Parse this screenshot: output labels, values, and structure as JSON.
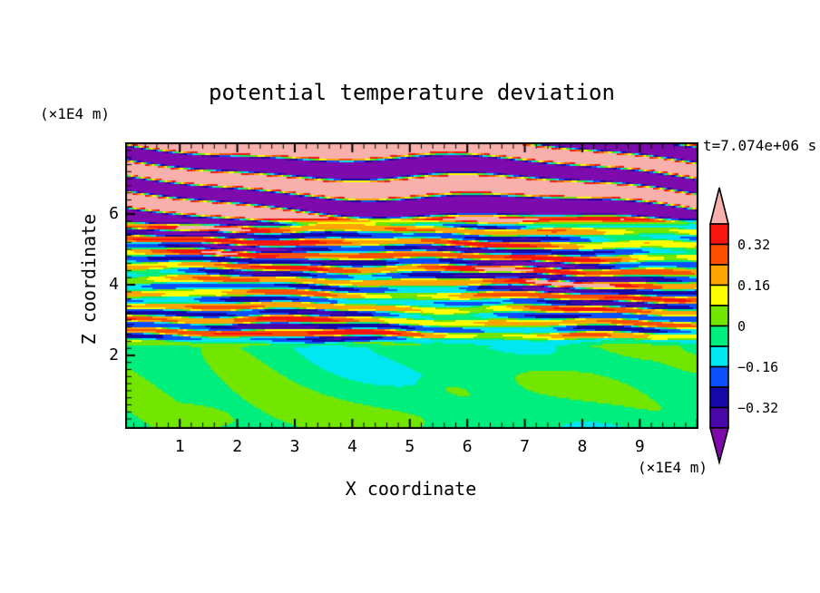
{
  "chart_data": {
    "type": "heatmap",
    "title": "potential temperature deviation",
    "timestamp_label": "t=7.074e+06 s",
    "x_axis": {
      "label": "X coordinate",
      "unit": "(×1E4 m)",
      "range": [
        0.05,
        10.02
      ],
      "major_ticks": [
        1,
        2,
        3,
        4,
        5,
        6,
        7,
        8,
        9,
        10
      ],
      "tick_labels": [
        "1",
        "2",
        "3",
        "4",
        "5",
        "6",
        "7",
        "8",
        "9",
        ""
      ],
      "minor_tick_interval": 0.2
    },
    "z_axis": {
      "label": "Z coordinate",
      "unit": "(×1E4 m)",
      "range": [
        -0.08,
        8.03
      ],
      "major_ticks": [
        2,
        4,
        6
      ],
      "tick_labels": [
        "2",
        "4",
        "6"
      ],
      "minor_tick_interval": 0.2
    },
    "colorbar": {
      "levels_top_to_bottom": [
        0.4,
        0.32,
        0.24,
        0.16,
        0.08,
        0,
        -0.08,
        -0.16,
        -0.24,
        -0.32,
        -0.4
      ],
      "segment_colors_top_to_bottom": [
        "#f9150f",
        "#fc5000",
        "#ffa400",
        "#ffff00",
        "#73e600",
        "#00ee7e",
        "#00e7f2",
        "#0c50fb",
        "#1607a8",
        "#4a07a8"
      ],
      "over_color": "#f7b0ac",
      "under_color": "#7d0aad",
      "labels": [
        {
          "text": "0.32",
          "boundary_index": 1
        },
        {
          "text": "0.16",
          "boundary_index": 3
        },
        {
          "text": "0",
          "boundary_index": 5
        },
        {
          "text": "−0.16",
          "boundary_index": 7
        },
        {
          "text": "−0.32",
          "boundary_index": 9
        }
      ]
    },
    "field_regions": [
      {
        "name": "upper-wave-region",
        "z_from": 5.7,
        "z_to": 8.1,
        "value_range": [
          -0.55,
          0.55
        ],
        "pattern": "large-amplitude tilted wave bands saturating beyond +0.4 (pink) and -0.4 (purple) with thin rainbow fringes"
      },
      {
        "name": "middle-layered-region",
        "z_from": 2.3,
        "z_to": 5.7,
        "value_range": [
          -0.45,
          0.45
        ],
        "pattern": "fine horizontal streak layers cycling through all contour levels"
      },
      {
        "name": "lower-mixed-region",
        "z_from": 0,
        "z_to": 2.3,
        "value_range": [
          -0.11,
          0.12
        ],
        "pattern": "smooth near-zero green field with slightly positive patches and sparse yellow spots"
      }
    ]
  }
}
